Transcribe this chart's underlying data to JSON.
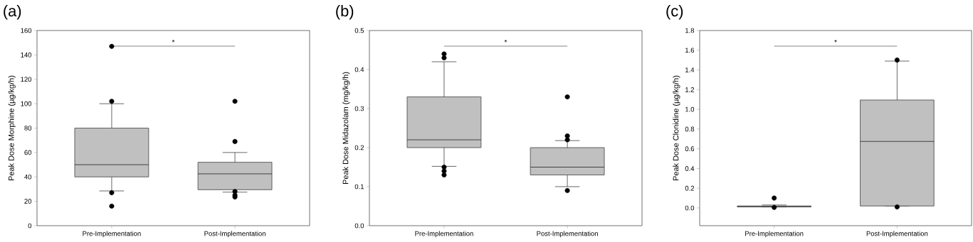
{
  "chart_data": [
    {
      "type": "box",
      "title": "(a)",
      "ylabel": "Peak Dose Morphine (µg/kg/h)",
      "categories": [
        "Pre-Implementation",
        "Post-Implementation"
      ],
      "ylim": [
        0,
        160
      ],
      "yticks": [
        0,
        20,
        40,
        60,
        80,
        100,
        120,
        140,
        160
      ],
      "series": [
        {
          "color": "#c0c0c0",
          "boxes": [
            {
              "low": 28.5,
              "q1": 40,
              "median": 50,
              "q3": 80,
              "high": 100,
              "outliers": [
                147,
                102,
                27,
                16
              ]
            },
            {
              "low": 27.5,
              "q1": 29.5,
              "median": 42.5,
              "q3": 52,
              "high": 60,
              "outliers": [
                102,
                69,
                28,
                25,
                23.5
              ]
            }
          ]
        }
      ],
      "annotations": [
        "*"
      ]
    },
    {
      "type": "box",
      "title": "(b)",
      "ylabel": "Peak Dose Midazolam (mg/kg/h)",
      "categories": [
        "Pre-Implementation",
        "Post-Implementation"
      ],
      "ylim": [
        0,
        0.5
      ],
      "yticks": [
        {
          "value": 0,
          "label": "0.0"
        },
        {
          "value": 0.1,
          "label": "0.1"
        },
        {
          "value": 0.2,
          "label": "0.2"
        },
        {
          "value": 0.3,
          "label": "0.3"
        },
        {
          "value": 0.4,
          "label": "0.4"
        },
        {
          "value": 0.5,
          "label": "0.5"
        }
      ],
      "series": [
        {
          "color": "#c0c0c0",
          "boxes": [
            {
              "low": 0.152,
              "q1": 0.2,
              "median": 0.22,
              "q3": 0.33,
              "high": 0.42,
              "outliers": [
                0.44,
                0.43,
                0.15,
                0.14,
                0.13
              ]
            },
            {
              "low": 0.1,
              "q1": 0.13,
              "median": 0.15,
              "q3": 0.2,
              "high": 0.218,
              "outliers": [
                0.33,
                0.23,
                0.22,
                0.09
              ]
            }
          ]
        }
      ],
      "annotations": [
        "*"
      ]
    },
    {
      "type": "box",
      "title": "(c)",
      "ylabel": "Peak Dose Clonidine (µg/kg/h)",
      "categories": [
        "Pre-Implementation",
        "Post-Implementation"
      ],
      "ylim": [
        -0.18,
        1.8
      ],
      "yticks": [
        {
          "value": 0,
          "label": "0.0"
        },
        {
          "value": 0.2,
          "label": "0.2"
        },
        {
          "value": 0.4,
          "label": "0.4"
        },
        {
          "value": 0.6,
          "label": "0.6"
        },
        {
          "value": 0.8,
          "label": "0.8"
        },
        {
          "value": 1.0,
          "label": "1.0"
        },
        {
          "value": 1.2,
          "label": "1.2"
        },
        {
          "value": 1.4,
          "label": "1.4"
        },
        {
          "value": 1.6,
          "label": "1.6"
        },
        {
          "value": 1.8,
          "label": "1.8"
        }
      ],
      "series": [
        {
          "color": "#c0c0c0",
          "boxes": [
            {
              "low": 0.01,
              "q1": 0.01,
              "median": 0.015,
              "q3": 0.02,
              "high": 0.03,
              "outliers": [
                0.1,
                0.005
              ]
            },
            {
              "low": 0.02,
              "q1": 0.02,
              "median": 0.675,
              "q3": 1.095,
              "high": 1.49,
              "outliers": [
                1.5,
                0.01
              ]
            }
          ]
        }
      ],
      "annotations": [
        "*"
      ]
    }
  ]
}
